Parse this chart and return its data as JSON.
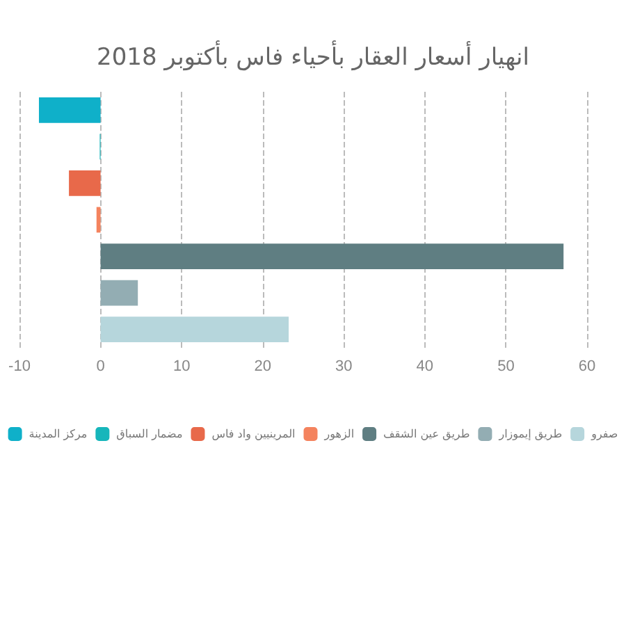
{
  "chart_data": {
    "type": "bar",
    "orientation": "horizontal",
    "title": "انهيار أسعار العقار بأحياء فاس بأكتوبر 2018",
    "categories": [
      null,
      null,
      null,
      null,
      null,
      null,
      null
    ],
    "series": [
      {
        "name": "مركز المدينة",
        "color": "#0fb0c9",
        "values": [
          -7.6,
          null,
          null,
          null,
          null,
          null,
          null
        ]
      },
      {
        "name": "مضمار السباق",
        "color": "#17b6bb",
        "values": [
          null,
          -0.1,
          null,
          null,
          null,
          null,
          null
        ]
      },
      {
        "name": "المرينيين واد فاس",
        "color": "#e8694a",
        "values": [
          null,
          null,
          -3.9,
          null,
          null,
          null,
          null
        ]
      },
      {
        "name": "الزهور",
        "color": "#f4835e",
        "values": [
          null,
          null,
          null,
          -0.5,
          null,
          null,
          null
        ]
      },
      {
        "name": "طريق عين الشقف",
        "color": "#5f7e82",
        "values": [
          null,
          null,
          null,
          null,
          57.1,
          null,
          null
        ]
      },
      {
        "name": "طريق إيموزار",
        "color": "#93adb3",
        "values": [
          null,
          null,
          null,
          null,
          null,
          4.6,
          null
        ]
      },
      {
        "name": "صفرو",
        "color": "#b6d6dc",
        "values": [
          null,
          null,
          null,
          null,
          null,
          null,
          23.2
        ]
      }
    ],
    "xlim": [
      -10,
      60
    ],
    "xticks": [
      -10,
      0,
      10,
      20,
      30,
      40,
      50,
      60
    ],
    "grid": "x",
    "legend": "bottom"
  }
}
